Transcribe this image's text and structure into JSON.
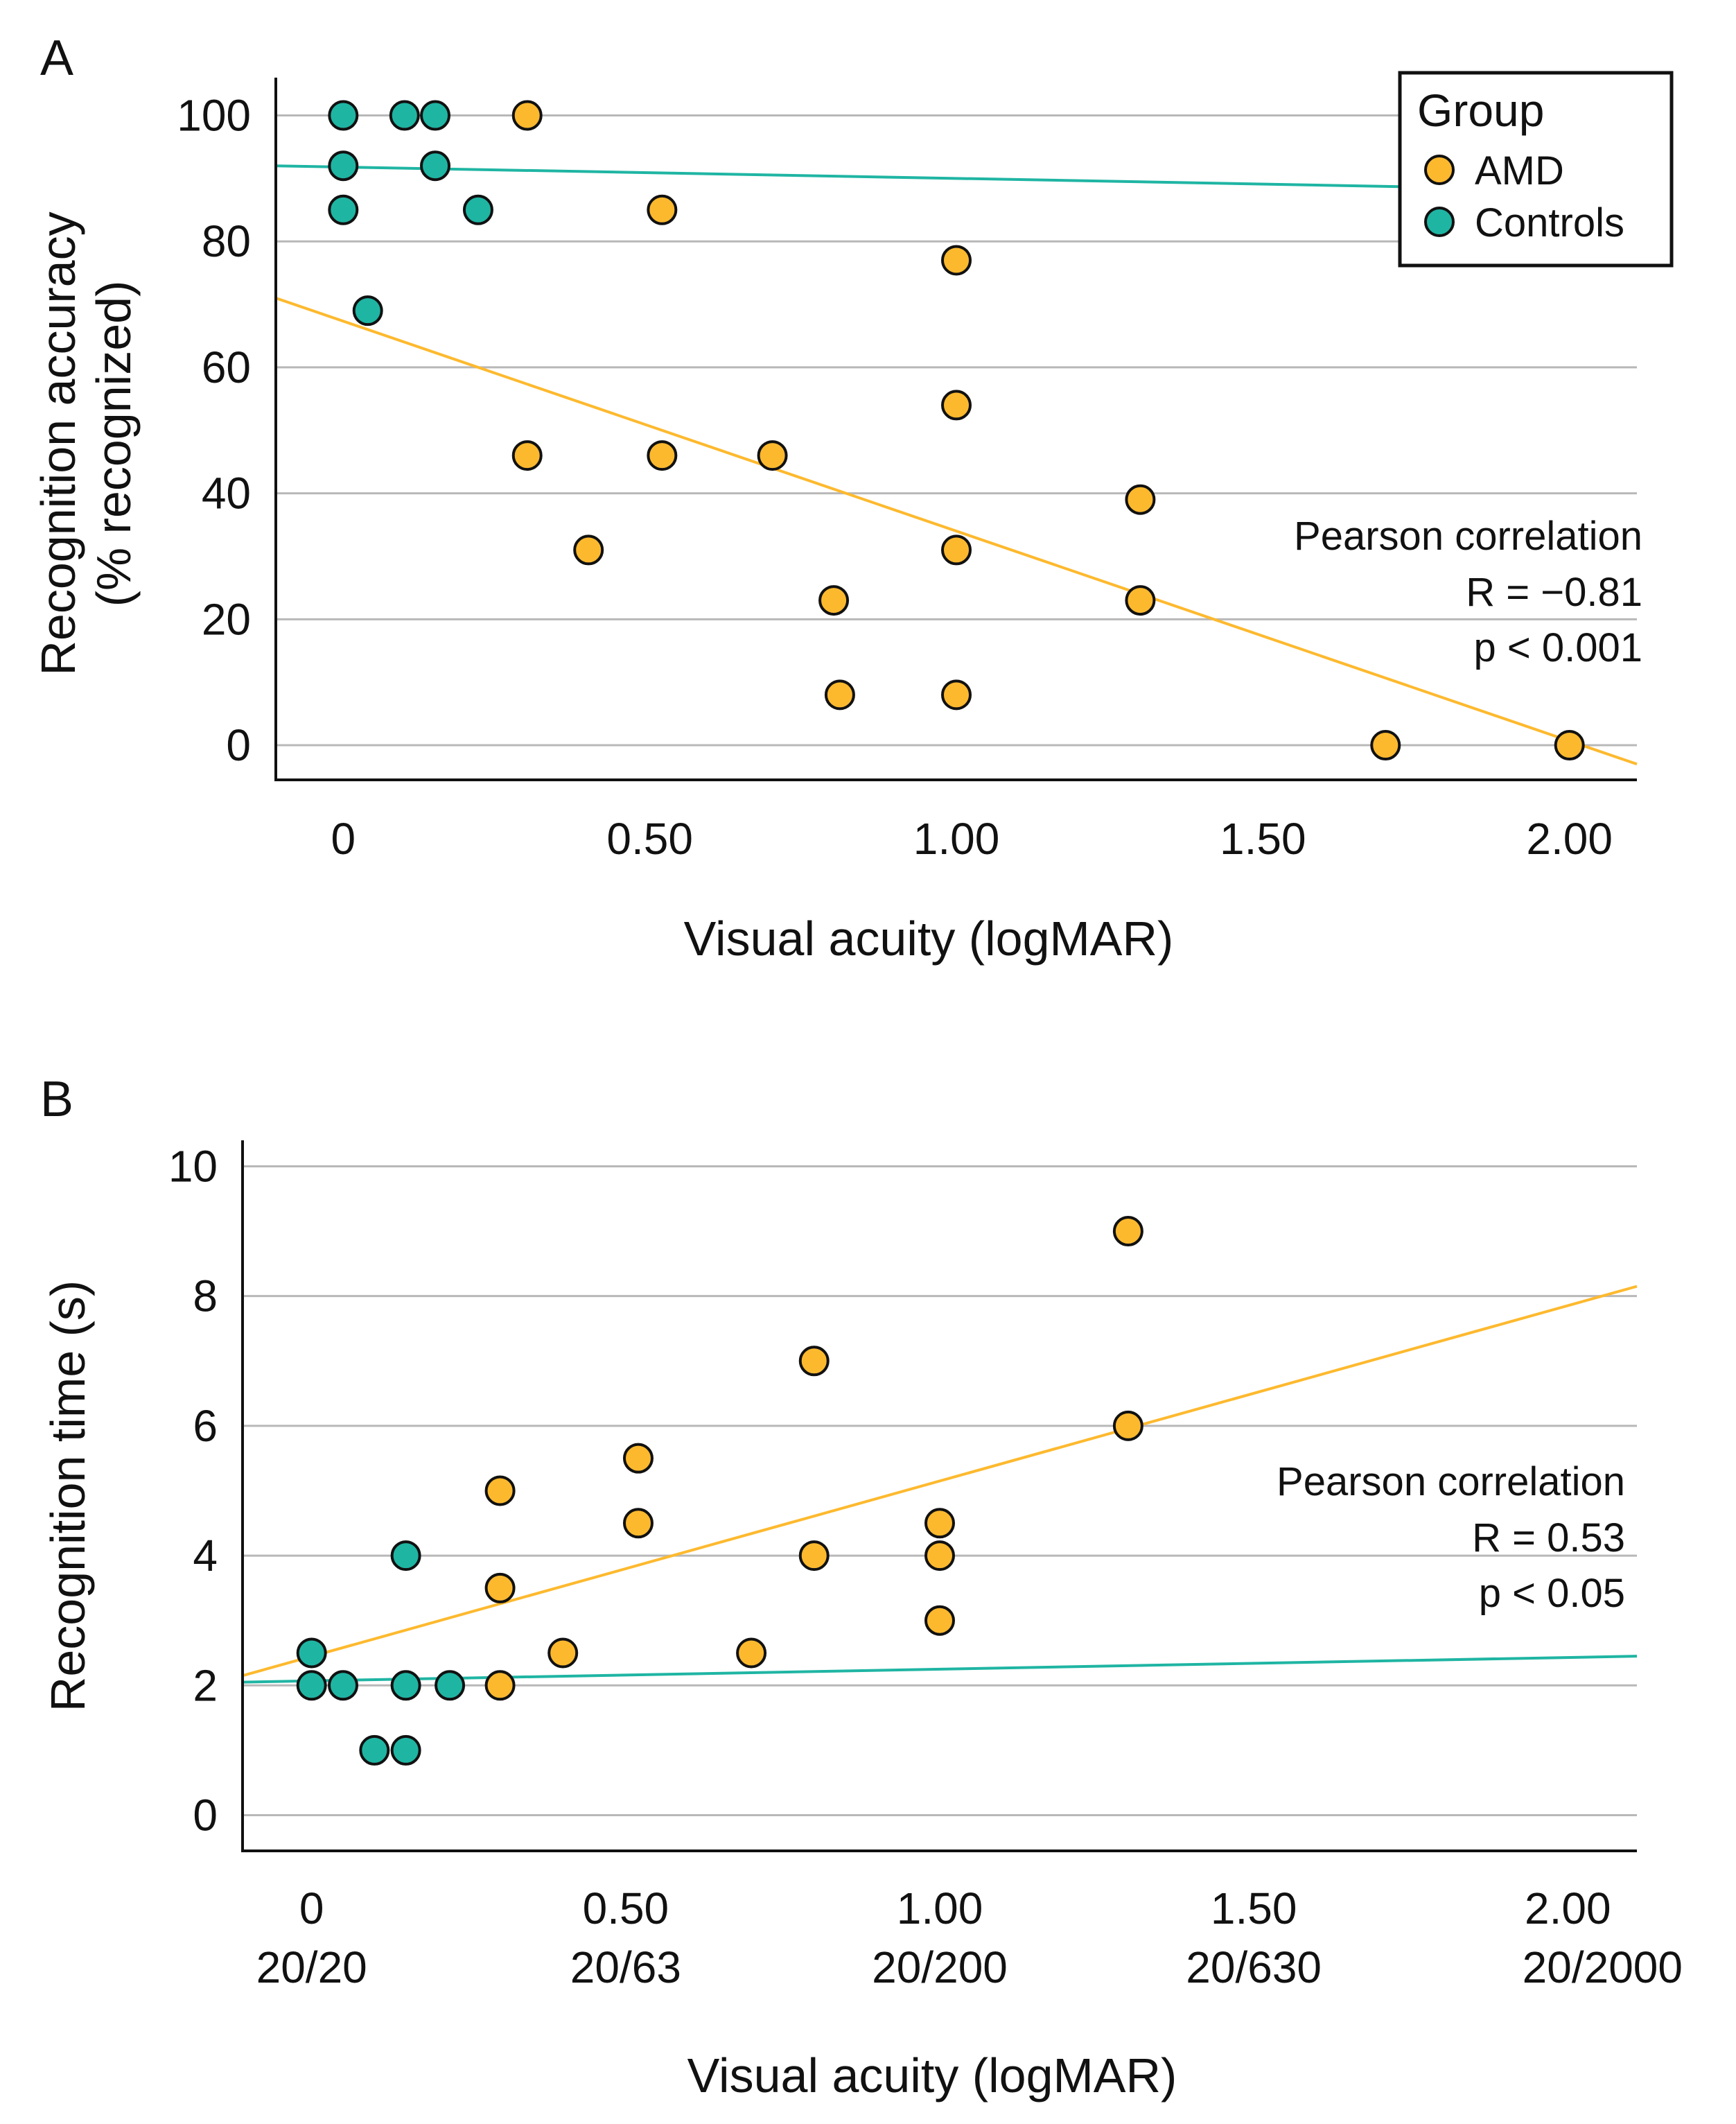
{
  "colors": {
    "amd": "#FDB92E",
    "controls": "#1FB5A3",
    "grid": "#b8b8b8",
    "axis": "#111111"
  },
  "legend": {
    "title": "Group",
    "items": [
      "AMD",
      "Controls"
    ]
  },
  "chart_data": [
    {
      "panel": "A",
      "type": "scatter",
      "ylabel_lines": [
        "Recognition accuracy",
        "(% recognized)"
      ],
      "xlabel": "Visual acuity (logMAR)",
      "xlim": [
        -0.11,
        2.11
      ],
      "ylim": [
        -5.5,
        106
      ],
      "xticks": [
        0,
        0.5,
        1.0,
        1.5,
        2.0
      ],
      "xtick_labels": [
        "0",
        "0.50",
        "1.00",
        "1.50",
        "2.00"
      ],
      "yticks": [
        0,
        20,
        40,
        60,
        80,
        100
      ],
      "ytick_labels": [
        "0",
        "20",
        "40",
        "60",
        "80",
        "100"
      ],
      "grid": "horizontal",
      "legend": "top-right",
      "annotation": [
        "Pearson correlation",
        "R = −0.81",
        "p < 0.001"
      ],
      "series": [
        {
          "name": "AMD",
          "points": [
            [
              0.3,
              100
            ],
            [
              0.52,
              85
            ],
            [
              1.0,
              77
            ],
            [
              1.0,
              54
            ],
            [
              0.3,
              46
            ],
            [
              0.52,
              46
            ],
            [
              0.7,
              46
            ],
            [
              1.3,
              39
            ],
            [
              0.4,
              31
            ],
            [
              1.0,
              31
            ],
            [
              0.8,
              23
            ],
            [
              1.3,
              23
            ],
            [
              0.81,
              8
            ],
            [
              1.0,
              8
            ],
            [
              1.7,
              0
            ],
            [
              2.0,
              0
            ]
          ],
          "fit": [
            [
              -0.11,
              71
            ],
            [
              2.11,
              -3
            ]
          ]
        },
        {
          "name": "Controls",
          "points": [
            [
              0,
              100
            ],
            [
              0.1,
              100
            ],
            [
              0.15,
              100
            ],
            [
              0,
              92
            ],
            [
              0.15,
              92
            ],
            [
              0,
              85
            ],
            [
              0.22,
              85
            ],
            [
              0.04,
              69
            ]
          ],
          "fit": [
            [
              -0.11,
              92
            ],
            [
              2.11,
              88
            ]
          ]
        }
      ]
    },
    {
      "panel": "B",
      "type": "scatter",
      "ylabel_lines": [
        "Recognition time (s)"
      ],
      "xlabel": "Visual acuity (logMAR)",
      "xlim": [
        -0.11,
        2.11
      ],
      "ylim": [
        -0.55,
        10.4
      ],
      "xticks": [
        0,
        0.5,
        1.0,
        1.5,
        2.0
      ],
      "xtick_labels": [
        "0",
        "0.50",
        "1.00",
        "1.50",
        "2.00"
      ],
      "xtick_sublabels": [
        "20/20",
        "20/63",
        "20/200",
        "20/630",
        "20/2000"
      ],
      "yticks": [
        0,
        2,
        4,
        6,
        8,
        10
      ],
      "ytick_labels": [
        "0",
        "2",
        "4",
        "6",
        "8",
        "10"
      ],
      "grid": "horizontal",
      "annotation": [
        "Pearson correlation",
        "R = 0.53",
        "p < 0.05"
      ],
      "series": [
        {
          "name": "AMD",
          "points": [
            [
              1.3,
              9
            ],
            [
              0.8,
              7
            ],
            [
              1.3,
              6
            ],
            [
              0.52,
              5.5
            ],
            [
              0.3,
              5
            ],
            [
              0.52,
              4.5
            ],
            [
              1.0,
              4.5
            ],
            [
              0.3,
              3.5
            ],
            [
              0.8,
              4
            ],
            [
              1.0,
              4
            ],
            [
              1.0,
              3
            ],
            [
              0.4,
              2.5
            ],
            [
              0.7,
              2.5
            ],
            [
              0.3,
              2
            ]
          ],
          "fit": [
            [
              -0.11,
              2.15
            ],
            [
              2.11,
              8.15
            ]
          ]
        },
        {
          "name": "Controls",
          "points": [
            [
              0,
              2.5
            ],
            [
              0,
              2
            ],
            [
              0.05,
              2
            ],
            [
              0.15,
              4
            ],
            [
              0.15,
              2
            ],
            [
              0.22,
              2
            ],
            [
              0.1,
              1
            ],
            [
              0.15,
              1
            ]
          ],
          "fit": [
            [
              -0.11,
              2.05
            ],
            [
              2.11,
              2.45
            ]
          ]
        }
      ]
    }
  ]
}
